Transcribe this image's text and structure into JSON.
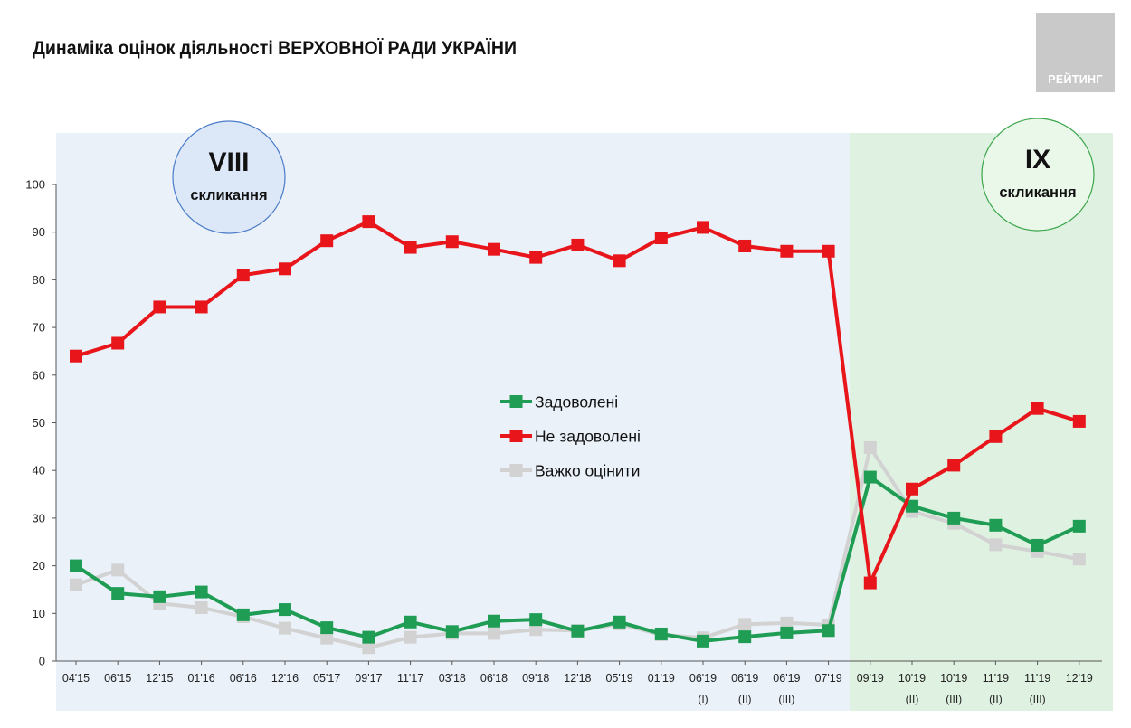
{
  "colors": {
    "satisfied": "#1f9d55",
    "not_satisfied": "#e8151b",
    "hard_to_say": "#d2d2d2",
    "period_viii_bg": "#eaf1f9",
    "period_ix_bg": "#dff1e0",
    "circle_viii": "#dce8f8",
    "circle_viii_border": "#4a7bc8",
    "circle_ix": "#eaf8ea",
    "circle_ix_border": "#3aa64a"
  },
  "logo": {
    "text": "РЕЙТИНГ"
  },
  "chart_data": {
    "type": "line",
    "title": "Динаміка оцінок діяльності ВЕРХОВНОЇ РАДИ УКРАЇНИ",
    "ylim": [
      0,
      100
    ],
    "yticks": [
      0,
      10,
      20,
      30,
      40,
      50,
      60,
      70,
      80,
      90,
      100
    ],
    "grid": false,
    "legend_position": "center",
    "x": [
      {
        "label": "04'15",
        "sub": ""
      },
      {
        "label": "06'15",
        "sub": ""
      },
      {
        "label": "12'15",
        "sub": ""
      },
      {
        "label": "01'16",
        "sub": ""
      },
      {
        "label": "06'16",
        "sub": ""
      },
      {
        "label": "12'16",
        "sub": ""
      },
      {
        "label": "05'17",
        "sub": ""
      },
      {
        "label": "09'17",
        "sub": ""
      },
      {
        "label": "11'17",
        "sub": ""
      },
      {
        "label": "03'18",
        "sub": ""
      },
      {
        "label": "06'18",
        "sub": ""
      },
      {
        "label": "09'18",
        "sub": ""
      },
      {
        "label": "12'18",
        "sub": ""
      },
      {
        "label": "05'19",
        "sub": ""
      },
      {
        "label": "01'19",
        "sub": ""
      },
      {
        "label": "06'19",
        "sub": "(I)"
      },
      {
        "label": "06'19",
        "sub": "(II)"
      },
      {
        "label": "06'19",
        "sub": "(III)"
      },
      {
        "label": "07'19",
        "sub": ""
      },
      {
        "label": "09'19",
        "sub": ""
      },
      {
        "label": "10'19",
        "sub": "(II)"
      },
      {
        "label": "10'19",
        "sub": "(III)"
      },
      {
        "label": "11'19",
        "sub": "(II)"
      },
      {
        "label": "11'19",
        "sub": "(III)"
      },
      {
        "label": "12'19",
        "sub": ""
      }
    ],
    "periods": [
      {
        "numeral": "VIII",
        "label": "скликання",
        "from": 0,
        "to": 18
      },
      {
        "numeral": "IX",
        "label": "скликання",
        "from": 19,
        "to": 24
      }
    ],
    "series": [
      {
        "name": "Задоволені",
        "key": "satisfied",
        "values": [
          20,
          14.2,
          13.5,
          14.5,
          9.7,
          10.8,
          7,
          5,
          8.2,
          6.2,
          8.4,
          8.7,
          6.3,
          8.2,
          5.7,
          4.2,
          5.1,
          5.9,
          6.4,
          38.6,
          32.5,
          30,
          28.5,
          24.3,
          28.3
        ]
      },
      {
        "name": "Не задоволені",
        "key": "not_satisfied",
        "values": [
          64,
          66.7,
          74.3,
          74.3,
          81,
          82.3,
          88.2,
          92.2,
          86.8,
          88,
          86.4,
          84.7,
          87.3,
          84,
          88.8,
          91,
          87.1,
          86,
          86,
          16.4,
          36.1,
          41.1,
          47.1,
          53,
          50.3
        ]
      },
      {
        "name": "Важко оцінити",
        "key": "hard_to_say",
        "values": [
          16,
          19.1,
          12.1,
          11.2,
          9.3,
          6.9,
          4.8,
          2.8,
          5,
          5.8,
          5.8,
          6.6,
          6.4,
          7.8,
          5.5,
          4.9,
          7.7,
          8,
          7.6,
          44.8,
          31.4,
          28.9,
          24.4,
          23,
          21.4
        ]
      }
    ]
  }
}
